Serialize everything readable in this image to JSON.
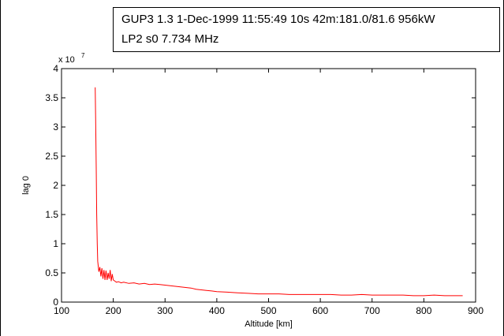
{
  "header": {
    "line1": "GUP3 1.3   1-Dec-1999 11:55:49 10s  42m:181.0/81.6  956kW",
    "line2": "LP2 s0  7.734 MHz"
  },
  "colors": {
    "line": "#ff0000",
    "axis": "#000000"
  },
  "chart_data": {
    "type": "line",
    "title": "",
    "xlabel": "Altitude [km]",
    "ylabel": "lag 0",
    "y_exponent_label": "x 10",
    "y_exponent_power": "7",
    "y_multiplier": 10000000,
    "xlim": [
      100,
      900
    ],
    "ylim": [
      0,
      4
    ],
    "xticks": [
      100,
      200,
      300,
      400,
      500,
      600,
      700,
      800,
      900
    ],
    "yticks": [
      0,
      0.5,
      1,
      1.5,
      2,
      2.5,
      3,
      3.5,
      4
    ],
    "xtick_labels": [
      "100",
      "200",
      "300",
      "400",
      "500",
      "600",
      "700",
      "800",
      "900"
    ],
    "ytick_labels": [
      "0",
      "0.5",
      "1",
      "1.5",
      "2",
      "2.5",
      "3",
      "3.5",
      "4"
    ],
    "grid": false,
    "series": [
      {
        "color": "#ff0000",
        "x": [
          165,
          166,
          167,
          168,
          169,
          170,
          172,
          174,
          176,
          178,
          180,
          182,
          184,
          186,
          188,
          190,
          192,
          194,
          196,
          198,
          200,
          203,
          206,
          210,
          215,
          220,
          230,
          240,
          250,
          260,
          270,
          280,
          290,
          300,
          310,
          320,
          330,
          340,
          350,
          360,
          370,
          380,
          390,
          400,
          420,
          440,
          460,
          480,
          500,
          520,
          540,
          560,
          580,
          600,
          620,
          640,
          660,
          680,
          700,
          720,
          740,
          760,
          780,
          800,
          820,
          840,
          860,
          875
        ],
        "y": [
          3.68,
          3.1,
          2.3,
          1.5,
          1.0,
          0.7,
          0.52,
          0.6,
          0.44,
          0.58,
          0.4,
          0.55,
          0.38,
          0.54,
          0.38,
          0.5,
          0.4,
          0.55,
          0.36,
          0.48,
          0.38,
          0.36,
          0.34,
          0.35,
          0.33,
          0.34,
          0.32,
          0.33,
          0.31,
          0.32,
          0.3,
          0.31,
          0.3,
          0.29,
          0.28,
          0.27,
          0.26,
          0.25,
          0.24,
          0.22,
          0.21,
          0.2,
          0.19,
          0.18,
          0.17,
          0.16,
          0.15,
          0.14,
          0.14,
          0.14,
          0.13,
          0.13,
          0.13,
          0.13,
          0.13,
          0.12,
          0.12,
          0.13,
          0.12,
          0.12,
          0.12,
          0.12,
          0.11,
          0.11,
          0.12,
          0.11,
          0.11,
          0.11
        ]
      }
    ]
  }
}
